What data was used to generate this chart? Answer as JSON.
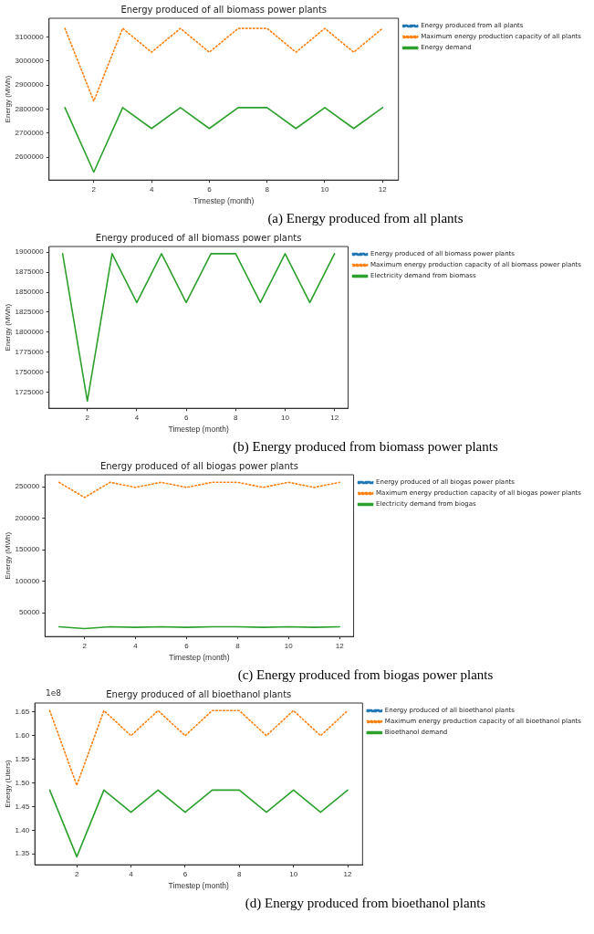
{
  "chart_data": [
    {
      "type": "line",
      "title": "Energy produced of all biomass power plants",
      "xlabel": "Timestep (month)",
      "ylabel": "Energy (MWh)",
      "x": [
        1,
        2,
        3,
        4,
        5,
        6,
        7,
        8,
        9,
        10,
        11,
        12
      ],
      "xlim": [
        0.45,
        12.55
      ],
      "xticks": [
        2,
        4,
        6,
        8,
        10,
        12
      ],
      "ylim": [
        2505000,
        3177000
      ],
      "yticks": [
        2600000,
        2700000,
        2800000,
        2900000,
        3000000,
        3100000
      ],
      "legend": "right",
      "grid": false,
      "marker": "none",
      "annotations": [
        "(a) Energy produced from all plants"
      ],
      "series": [
        {
          "name": "Energy produced from all plants",
          "color": "#1f77b4",
          "line_style": "dashed",
          "values": [
            null,
            null,
            null,
            null,
            null,
            null,
            null,
            null,
            null,
            null,
            null,
            null
          ]
        },
        {
          "name": "Maximum energy production capacity of all plants",
          "color": "#ff7f0e",
          "line_style": "dotted",
          "values": [
            3135000,
            2833000,
            3135000,
            3036000,
            3135000,
            3036000,
            3135000,
            3135000,
            3036000,
            3135000,
            3036000,
            3135000
          ]
        },
        {
          "name": "Energy demand",
          "color": "#2ca02c",
          "line_style": "solid",
          "values": [
            2806000,
            2538000,
            2806000,
            2719000,
            2806000,
            2719000,
            2806000,
            2806000,
            2719000,
            2806000,
            2719000,
            2806000
          ]
        }
      ]
    },
    {
      "type": "line",
      "title": "Energy produced of all biomass power plants",
      "xlabel": "Timestep (month)",
      "ylabel": "Energy (MWh)",
      "x": [
        1,
        2,
        3,
        4,
        5,
        6,
        7,
        8,
        9,
        10,
        11,
        12
      ],
      "xlim": [
        0.45,
        12.55
      ],
      "xticks": [
        2,
        4,
        6,
        8,
        10,
        12
      ],
      "ylim": [
        1705000,
        1907000
      ],
      "yticks": [
        1725000,
        1750000,
        1775000,
        1800000,
        1825000,
        1850000,
        1875000,
        1900000
      ],
      "legend": "right",
      "grid": false,
      "marker": "none",
      "annotations": [
        "(b) Energy produced from biomass power plants"
      ],
      "series": [
        {
          "name": "Energy produced of all biomass power plants",
          "color": "#1f77b4",
          "line_style": "dashed",
          "values": [
            null,
            null,
            null,
            null,
            null,
            null,
            null,
            null,
            null,
            null,
            null,
            null
          ]
        },
        {
          "name": "Maximum energy production capacity of all biomass power plants",
          "color": "#ff7f0e",
          "line_style": "dotted",
          "values": [
            null,
            null,
            null,
            null,
            null,
            null,
            null,
            null,
            null,
            null,
            null,
            null
          ]
        },
        {
          "name": "Electricity demand from biomass",
          "color": "#2ca02c",
          "line_style": "solid",
          "values": [
            1898000,
            1714000,
            1898000,
            1837000,
            1898000,
            1837000,
            1898000,
            1898000,
            1837000,
            1898000,
            1837000,
            1898000
          ]
        }
      ]
    },
    {
      "type": "line",
      "title": "Energy produced of all biogas power plants",
      "xlabel": "Timestep (month)",
      "ylabel": "Energy (MWh)",
      "x": [
        1,
        2,
        3,
        4,
        5,
        6,
        7,
        8,
        9,
        10,
        11,
        12
      ],
      "xlim": [
        0.45,
        12.55
      ],
      "xticks": [
        2,
        4,
        6,
        8,
        10,
        12
      ],
      "ylim": [
        12400,
        269000
      ],
      "yticks": [
        50000,
        100000,
        150000,
        200000,
        250000
      ],
      "legend": "right",
      "grid": false,
      "marker": "none",
      "annotations": [
        "(c) Energy produced from biogas power plants"
      ],
      "series": [
        {
          "name": "Energy produced of all biogas power plants",
          "color": "#1f77b4",
          "line_style": "dashed",
          "values": [
            null,
            null,
            null,
            null,
            null,
            null,
            null,
            null,
            null,
            null,
            null,
            null
          ]
        },
        {
          "name": "Maximum energy production capacity of all biogas power plants",
          "color": "#ff7f0e",
          "line_style": "dotted",
          "values": [
            257000,
            233000,
            257000,
            249000,
            257000,
            249000,
            257000,
            257000,
            249000,
            257000,
            249000,
            257000
          ]
        },
        {
          "name": "Electricity demand from biogas",
          "color": "#2ca02c",
          "line_style": "solid",
          "values": [
            28000,
            25000,
            28000,
            27000,
            28000,
            27000,
            28000,
            28000,
            27000,
            28000,
            27000,
            28000
          ]
        }
      ]
    },
    {
      "type": "line",
      "title": "Energy produced of all bioethanol plants",
      "xlabel": "Timestep (month)",
      "ylabel": "Energy (Liters)",
      "x": [
        1,
        2,
        3,
        4,
        5,
        6,
        7,
        8,
        9,
        10,
        11,
        12
      ],
      "xlim": [
        0.45,
        12.55
      ],
      "xticks": [
        2,
        4,
        6,
        8,
        10,
        12
      ],
      "ylim": [
        1.327,
        1.669
      ],
      "yticks": [
        {
          "value": 1.35,
          "label": "1.35"
        },
        {
          "value": 1.4,
          "label": "1.40"
        },
        {
          "value": 1.45,
          "label": "1.45"
        },
        {
          "value": 1.5,
          "label": "1.50"
        },
        {
          "value": 1.55,
          "label": "1.55"
        },
        {
          "value": 1.6,
          "label": "1.60"
        },
        {
          "value": 1.65,
          "label": "1.65"
        }
      ],
      "legend": "right",
      "grid": false,
      "marker": "none",
      "annotations": [
        "1e8",
        "(d) Energy produced from bioethanol plants"
      ],
      "series": [
        {
          "name": "Energy produced of all bioethanol plants",
          "color": "#1f77b4",
          "line_style": "dashed",
          "values": [
            null,
            null,
            null,
            null,
            null,
            null,
            null,
            null,
            null,
            null,
            null,
            null
          ]
        },
        {
          "name": "Maximum energy production capacity of all bioethanol plants",
          "color": "#ff7f0e",
          "line_style": "dotted",
          "values": [
            1.653,
            1.495,
            1.653,
            1.6,
            1.653,
            1.6,
            1.653,
            1.653,
            1.6,
            1.653,
            1.6,
            1.653
          ]
        },
        {
          "name": "Bioethanol demand",
          "color": "#2ca02c",
          "line_style": "solid",
          "values": [
            1.485,
            1.344,
            1.485,
            1.438,
            1.485,
            1.438,
            1.485,
            1.485,
            1.438,
            1.485,
            1.438,
            1.485
          ]
        }
      ]
    }
  ]
}
